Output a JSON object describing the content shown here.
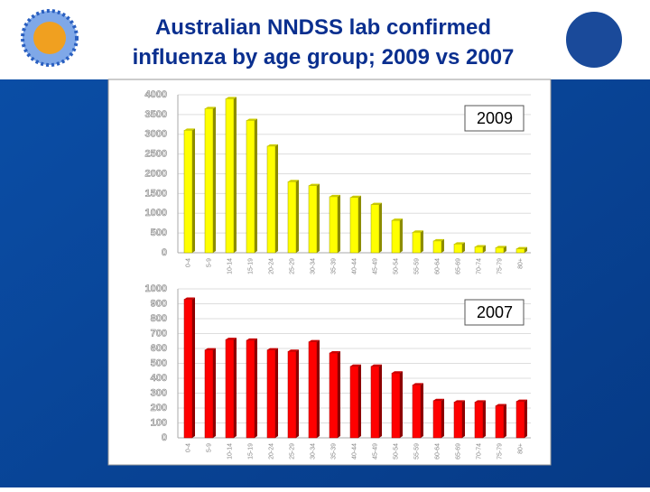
{
  "slide": {
    "title": "Australian NNDSS lab confirmed influenza by age group; 2009 vs 2007"
  },
  "chart_data": [
    {
      "type": "bar",
      "categories": [
        "0-4",
        "5-9",
        "10-14",
        "15-19",
        "20-24",
        "25-29",
        "30-34",
        "35-39",
        "40-44",
        "45-49",
        "50-54",
        "55-59",
        "60-64",
        "65-69",
        "70-74",
        "75-79",
        "80+"
      ],
      "series": [
        {
          "name": "2009",
          "color": "#ffff00",
          "values": [
            3100,
            3650,
            3900,
            3350,
            2700,
            1800,
            1700,
            1420,
            1400,
            1220,
            820,
            520,
            300,
            220,
            150,
            130,
            100
          ]
        }
      ],
      "ylim": [
        0,
        4000
      ],
      "yticks": [
        0,
        500,
        1000,
        1500,
        2000,
        2500,
        3000,
        3500,
        4000
      ],
      "grid": true
    },
    {
      "type": "bar",
      "categories": [
        "0-4",
        "5-9",
        "10-14",
        "15-19",
        "20-24",
        "25-29",
        "30-34",
        "35-39",
        "40-44",
        "45-49",
        "50-54",
        "55-59",
        "60-64",
        "65-69",
        "70-74",
        "75-79",
        "80+"
      ],
      "series": [
        {
          "name": "2007",
          "color": "#ff0000",
          "values": [
            930,
            590,
            660,
            655,
            590,
            580,
            645,
            570,
            480,
            480,
            435,
            355,
            250,
            240,
            240,
            215,
            245
          ]
        }
      ],
      "ylim": [
        0,
        1000
      ],
      "yticks": [
        0,
        100,
        200,
        300,
        400,
        500,
        600,
        700,
        800,
        900,
        1000
      ],
      "grid": true
    }
  ]
}
